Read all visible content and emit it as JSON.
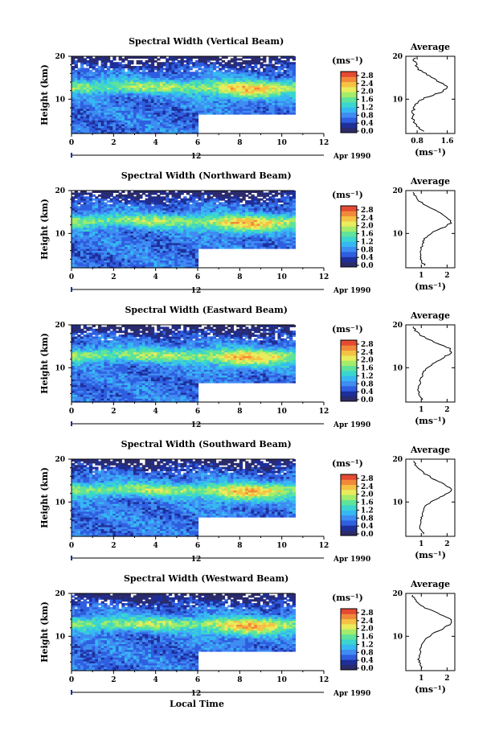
{
  "figure": {
    "xlabel_bottom": "Local Time",
    "colorscale": [
      "#2b2b6b",
      "#1e2f9a",
      "#2f5ee0",
      "#3f8cf2",
      "#36b8f2",
      "#3ad6cf",
      "#5fe39a",
      "#a4ec6a",
      "#e9ec5c",
      "#f6c244",
      "#f2893a",
      "#e54a32"
    ]
  },
  "chart_data": [
    {
      "type": "heatmap",
      "title": "Spectral Width (Vertical Beam)",
      "xlabel": "",
      "ylabel": "Height (km)",
      "x_ticks": [
        "0",
        "2",
        "4",
        "6",
        "8",
        "10",
        "12"
      ],
      "y_ticks": [
        "10",
        "20"
      ],
      "xlim": [
        0,
        12
      ],
      "ylim": [
        2,
        20
      ],
      "date_marker": "12",
      "date_label": "Apr 1990",
      "data_extent": {
        "t_end": 10.6,
        "gap_t0": 6.0,
        "gap_t1": 10.6,
        "gap_hmax": 6.5
      },
      "colorbar": {
        "unit": "(ms⁻¹)",
        "ticks": [
          "2.8",
          "2.4",
          "2.0",
          "1.6",
          "1.2",
          "0.8",
          "0.4",
          "0.0"
        ]
      },
      "average": {
        "title": "Average",
        "xlabel": "(ms⁻¹)",
        "xticks": [
          "0.8",
          "1.6"
        ],
        "xlim": [
          0.5,
          1.8
        ],
        "tick_values": [
          0.8,
          1.6
        ],
        "yticks": [
          "10",
          "20"
        ],
        "ylim": [
          2,
          20
        ],
        "profile": [
          [
            2.5,
            0.95
          ],
          [
            3.5,
            0.8
          ],
          [
            4.5,
            0.7
          ],
          [
            5.5,
            0.68
          ],
          [
            6.5,
            0.68
          ],
          [
            7.5,
            0.7
          ],
          [
            8.5,
            0.75
          ],
          [
            9.5,
            0.85
          ],
          [
            10.5,
            1.05
          ],
          [
            11.5,
            1.4
          ],
          [
            12.5,
            1.62
          ],
          [
            13.5,
            1.5
          ],
          [
            14.5,
            1.3
          ],
          [
            15.5,
            1.1
          ],
          [
            16.5,
            0.9
          ],
          [
            17.5,
            0.8
          ],
          [
            18.5,
            0.75
          ],
          [
            19.5,
            0.72
          ]
        ]
      }
    },
    {
      "type": "heatmap",
      "title": "Spectral Width (Northward Beam)",
      "xlabel": "",
      "ylabel": "Height (km)",
      "x_ticks": [
        "0",
        "2",
        "4",
        "6",
        "8",
        "10",
        "12"
      ],
      "y_ticks": [
        "10",
        "20"
      ],
      "xlim": [
        0,
        12
      ],
      "ylim": [
        2,
        20
      ],
      "date_marker": "12",
      "date_label": "Apr 1990",
      "data_extent": {
        "t_end": 10.6,
        "gap_t0": 6.0,
        "gap_t1": 10.6,
        "gap_hmax": 6.5
      },
      "colorbar": {
        "unit": "(ms⁻¹)",
        "ticks": [
          "2.8",
          "2.4",
          "2.0",
          "1.6",
          "1.2",
          "0.8",
          "0.4",
          "0.0"
        ]
      },
      "average": {
        "title": "Average",
        "xlabel": "(ms⁻¹)",
        "xticks": [
          "1",
          "2"
        ],
        "xlim": [
          0.4,
          2.3
        ],
        "tick_values": [
          1,
          2
        ],
        "yticks": [
          "10",
          "20"
        ],
        "ylim": [
          2,
          20
        ],
        "profile": [
          [
            2.5,
            1.15
          ],
          [
            3.5,
            1.0
          ],
          [
            4.5,
            0.95
          ],
          [
            5.5,
            0.95
          ],
          [
            6.5,
            1.0
          ],
          [
            7.5,
            1.05
          ],
          [
            8.5,
            1.1
          ],
          [
            9.5,
            1.25
          ],
          [
            10.5,
            1.5
          ],
          [
            11.5,
            1.9
          ],
          [
            12.5,
            2.15
          ],
          [
            13.5,
            2.05
          ],
          [
            14.5,
            1.8
          ],
          [
            15.5,
            1.5
          ],
          [
            16.5,
            1.2
          ],
          [
            17.5,
            0.95
          ],
          [
            18.5,
            0.8
          ],
          [
            19.5,
            0.65
          ]
        ]
      }
    },
    {
      "type": "heatmap",
      "title": "Spectral Width (Eastward Beam)",
      "xlabel": "",
      "ylabel": "Height (km)",
      "x_ticks": [
        "0",
        "2",
        "4",
        "6",
        "8",
        "10",
        "12"
      ],
      "y_ticks": [
        "10",
        "20"
      ],
      "xlim": [
        0,
        12
      ],
      "ylim": [
        2,
        20
      ],
      "date_marker": "12",
      "date_label": "Apr 1990",
      "data_extent": {
        "t_end": 10.6,
        "gap_t0": 6.0,
        "gap_t1": 10.6,
        "gap_hmax": 6.5
      },
      "colorbar": {
        "unit": "(ms⁻¹)",
        "ticks": [
          "2.8",
          "2.4",
          "2.0",
          "1.6",
          "1.2",
          "0.8",
          "0.4",
          "0.0"
        ]
      },
      "average": {
        "title": "Average",
        "xlabel": "(ms⁻¹)",
        "xticks": [
          "1",
          "2"
        ],
        "xlim": [
          0.4,
          2.3
        ],
        "tick_values": [
          1,
          2
        ],
        "yticks": [
          "10",
          "20"
        ],
        "ylim": [
          2,
          20
        ],
        "profile": [
          [
            2.5,
            1.05
          ],
          [
            3.5,
            0.95
          ],
          [
            4.5,
            0.9
          ],
          [
            5.5,
            0.9
          ],
          [
            6.5,
            0.95
          ],
          [
            7.5,
            1.0
          ],
          [
            8.5,
            1.05
          ],
          [
            9.5,
            1.15
          ],
          [
            10.5,
            1.35
          ],
          [
            11.5,
            1.6
          ],
          [
            12.5,
            1.9
          ],
          [
            13.5,
            2.15
          ],
          [
            14.5,
            2.1
          ],
          [
            15.5,
            1.7
          ],
          [
            16.5,
            1.3
          ],
          [
            17.5,
            1.0
          ],
          [
            18.5,
            0.8
          ],
          [
            19.5,
            0.7
          ]
        ]
      }
    },
    {
      "type": "heatmap",
      "title": "Spectral Width (Southward Beam)",
      "xlabel": "",
      "ylabel": "Height (km)",
      "x_ticks": [
        "0",
        "2",
        "4",
        "6",
        "8",
        "10",
        "12"
      ],
      "y_ticks": [
        "10",
        "20"
      ],
      "xlim": [
        0,
        12
      ],
      "ylim": [
        2,
        20
      ],
      "date_marker": "12",
      "date_label": "Apr 1990",
      "data_extent": {
        "t_end": 10.6,
        "gap_t0": 6.0,
        "gap_t1": 10.6,
        "gap_hmax": 6.5
      },
      "colorbar": {
        "unit": "(ms⁻¹)",
        "ticks": [
          "2.8",
          "2.4",
          "2.0",
          "1.6",
          "1.2",
          "0.8",
          "0.4",
          "0.0"
        ]
      },
      "average": {
        "title": "Average",
        "xlabel": "(ms⁻¹)",
        "xticks": [
          "1",
          "2"
        ],
        "xlim": [
          0.4,
          2.3
        ],
        "tick_values": [
          1,
          2
        ],
        "yticks": [
          "10",
          "20"
        ],
        "ylim": [
          2,
          20
        ],
        "profile": [
          [
            2.5,
            1.1
          ],
          [
            3.5,
            1.0
          ],
          [
            4.5,
            0.95
          ],
          [
            5.5,
            0.95
          ],
          [
            6.5,
            1.0
          ],
          [
            7.5,
            1.05
          ],
          [
            8.5,
            1.1
          ],
          [
            9.5,
            1.25
          ],
          [
            10.5,
            1.5
          ],
          [
            11.5,
            1.85
          ],
          [
            12.5,
            2.2
          ],
          [
            13.5,
            2.05
          ],
          [
            14.5,
            1.75
          ],
          [
            15.5,
            1.45
          ],
          [
            16.5,
            1.15
          ],
          [
            17.5,
            0.95
          ],
          [
            18.5,
            0.8
          ],
          [
            19.5,
            0.7
          ]
        ]
      }
    },
    {
      "type": "heatmap",
      "title": "Spectral Width (Westward Beam)",
      "xlabel": "",
      "ylabel": "Height (km)",
      "x_ticks": [
        "0",
        "2",
        "4",
        "6",
        "8",
        "10",
        "12"
      ],
      "y_ticks": [
        "10",
        "20"
      ],
      "xlim": [
        0,
        12
      ],
      "ylim": [
        2,
        20
      ],
      "date_marker": "12",
      "date_label": "Apr 1990",
      "data_extent": {
        "t_end": 10.6,
        "gap_t0": 6.0,
        "gap_t1": 10.6,
        "gap_hmax": 6.5
      },
      "colorbar": {
        "unit": "(ms⁻¹)",
        "ticks": [
          "2.8",
          "2.4",
          "2.0",
          "1.6",
          "1.2",
          "0.8",
          "0.4",
          "0.0"
        ]
      },
      "average": {
        "title": "Average",
        "xlabel": "(ms⁻¹)",
        "xticks": [
          "1",
          "2"
        ],
        "xlim": [
          0.4,
          2.3
        ],
        "tick_values": [
          1,
          2
        ],
        "yticks": [
          "10",
          "20"
        ],
        "ylim": [
          2,
          20
        ],
        "profile": [
          [
            2.5,
            1.05
          ],
          [
            3.5,
            0.95
          ],
          [
            4.5,
            0.9
          ],
          [
            5.5,
            0.9
          ],
          [
            6.5,
            0.95
          ],
          [
            7.5,
            1.0
          ],
          [
            8.5,
            1.05
          ],
          [
            9.5,
            1.2
          ],
          [
            10.5,
            1.4
          ],
          [
            11.5,
            1.75
          ],
          [
            12.5,
            2.05
          ],
          [
            13.5,
            2.2
          ],
          [
            14.5,
            2.0
          ],
          [
            15.5,
            1.6
          ],
          [
            16.5,
            1.2
          ],
          [
            17.5,
            0.9
          ],
          [
            18.5,
            0.75
          ],
          [
            19.5,
            0.65
          ]
        ]
      }
    }
  ]
}
